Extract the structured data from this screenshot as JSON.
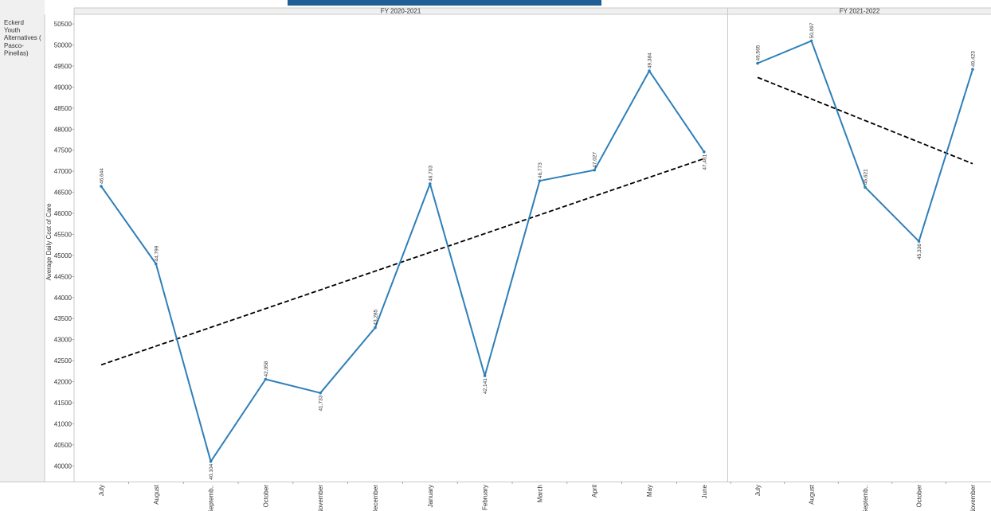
{
  "row_label_lines": [
    "Eckerd",
    "Youth",
    "Alternatives (",
    "Pasco-",
    "Pinellas)"
  ],
  "colors": {
    "line": "#2e7fb8",
    "trend": "#000000",
    "header_bg": "#f0f0f0",
    "grid_border": "#c8c8c8",
    "title_bar": "#1f5f95"
  },
  "chart_data": {
    "type": "line",
    "ylabel": "Average Daily Cost of Care",
    "ylim": [
      39600,
      50500
    ],
    "yticks": [
      40000,
      40500,
      41000,
      41500,
      42000,
      42500,
      43000,
      43500,
      44000,
      44500,
      45000,
      45500,
      46000,
      46500,
      47000,
      47500,
      48000,
      48500,
      49000,
      49500,
      50000,
      50500
    ],
    "grid": false,
    "panels": [
      {
        "header": "FY 2020-2021",
        "categories": [
          "July",
          "August",
          "Septemb..",
          "October",
          "November",
          "December",
          "January",
          "February",
          "March",
          "April",
          "May",
          "June"
        ],
        "values": [
          46644,
          44799,
          40104,
          42058,
          41733,
          43285,
          46703,
          42141,
          46773,
          47027,
          49384,
          47461
        ],
        "labels": [
          "46,644",
          "44,799",
          "40,104",
          "42,058",
          "41,733",
          "43,285",
          "46,703",
          "42,141",
          "46,773",
          "47,027",
          "49,384",
          "47,461"
        ],
        "trend": [
          42400,
          47300
        ]
      },
      {
        "header": "FY 2021-2022",
        "categories": [
          "July",
          "August",
          "Septemb..",
          "October",
          "November"
        ],
        "values": [
          49565,
          50097,
          46621,
          45336,
          49423
        ],
        "labels": [
          "49,565",
          "50,097",
          "46,621",
          "45,336",
          "49,423"
        ],
        "trend": [
          49230,
          47180
        ]
      }
    ]
  }
}
